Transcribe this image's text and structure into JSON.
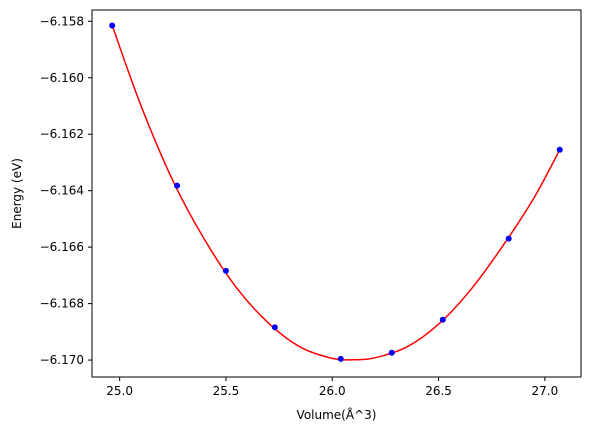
{
  "chart_data": {
    "type": "scatter",
    "xlabel": "Volume(Å^3)",
    "ylabel": "Energy (eV)",
    "xlim": [
      24.87,
      27.17
    ],
    "ylim": [
      -6.1706,
      -6.1576
    ],
    "x_ticks": [
      25.0,
      25.5,
      26.0,
      26.5,
      27.0
    ],
    "x_tick_labels": [
      "25.0",
      "25.5",
      "26.0",
      "26.5",
      "27.0"
    ],
    "y_ticks": [
      -6.158,
      -6.16,
      -6.162,
      -6.164,
      -6.166,
      -6.168,
      -6.17
    ],
    "y_tick_labels": [
      "−6.158",
      "−6.160",
      "−6.162",
      "−6.164",
      "−6.166",
      "−6.168",
      "−6.170"
    ],
    "grid": false,
    "series": [
      {
        "kind": "scatter",
        "color": "#0000ff",
        "x": [
          24.965,
          25.27,
          25.5,
          25.73,
          26.04,
          26.28,
          26.52,
          26.83,
          27.07
        ],
        "y": [
          -6.15815,
          -6.16382,
          -6.16684,
          -6.16884,
          -6.16996,
          -6.16974,
          -6.16857,
          -6.1657,
          -6.16255
        ]
      },
      {
        "kind": "fit-curve",
        "color": "#ff0000",
        "x": [
          24.965,
          25.1,
          25.25,
          25.4,
          25.55,
          25.7,
          25.85,
          26.0,
          26.1,
          26.2,
          26.35,
          26.5,
          26.65,
          26.8,
          26.95,
          27.07
        ],
        "y": [
          -6.15815,
          -6.16098,
          -6.16364,
          -6.16574,
          -6.16744,
          -6.16869,
          -6.16954,
          -6.16994,
          -6.16999,
          -6.16992,
          -6.16954,
          -6.16873,
          -6.16752,
          -6.16598,
          -6.16424,
          -6.16255
        ]
      }
    ]
  }
}
